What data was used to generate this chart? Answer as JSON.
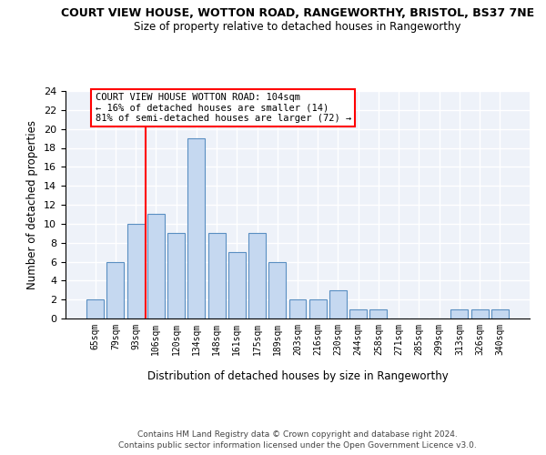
{
  "title_line1": "COURT VIEW HOUSE, WOTTON ROAD, RANGEWORTHY, BRISTOL, BS37 7NE",
  "title_line2": "Size of property relative to detached houses in Rangeworthy",
  "xlabel": "Distribution of detached houses by size in Rangeworthy",
  "ylabel": "Number of detached properties",
  "footnote": "Contains HM Land Registry data © Crown copyright and database right 2024.\nContains public sector information licensed under the Open Government Licence v3.0.",
  "categories": [
    "65sqm",
    "79sqm",
    "93sqm",
    "106sqm",
    "120sqm",
    "134sqm",
    "148sqm",
    "161sqm",
    "175sqm",
    "189sqm",
    "203sqm",
    "216sqm",
    "230sqm",
    "244sqm",
    "258sqm",
    "271sqm",
    "285sqm",
    "299sqm",
    "313sqm",
    "326sqm",
    "340sqm"
  ],
  "values": [
    2,
    6,
    10,
    11,
    9,
    19,
    9,
    7,
    9,
    6,
    2,
    2,
    3,
    1,
    1,
    0,
    0,
    0,
    1,
    1,
    1
  ],
  "bar_color": "#c5d8f0",
  "bar_edge_color": "#5a8fc2",
  "vline_color": "red",
  "vline_x_index": 2.5,
  "ylim": [
    0,
    24
  ],
  "yticks": [
    0,
    2,
    4,
    6,
    8,
    10,
    12,
    14,
    16,
    18,
    20,
    22,
    24
  ],
  "annotation_text": "COURT VIEW HOUSE WOTTON ROAD: 104sqm\n← 16% of detached houses are smaller (14)\n81% of semi-detached houses are larger (72) →",
  "annotation_box_color": "white",
  "annotation_box_edge_color": "red",
  "bg_color": "#eef2f9"
}
